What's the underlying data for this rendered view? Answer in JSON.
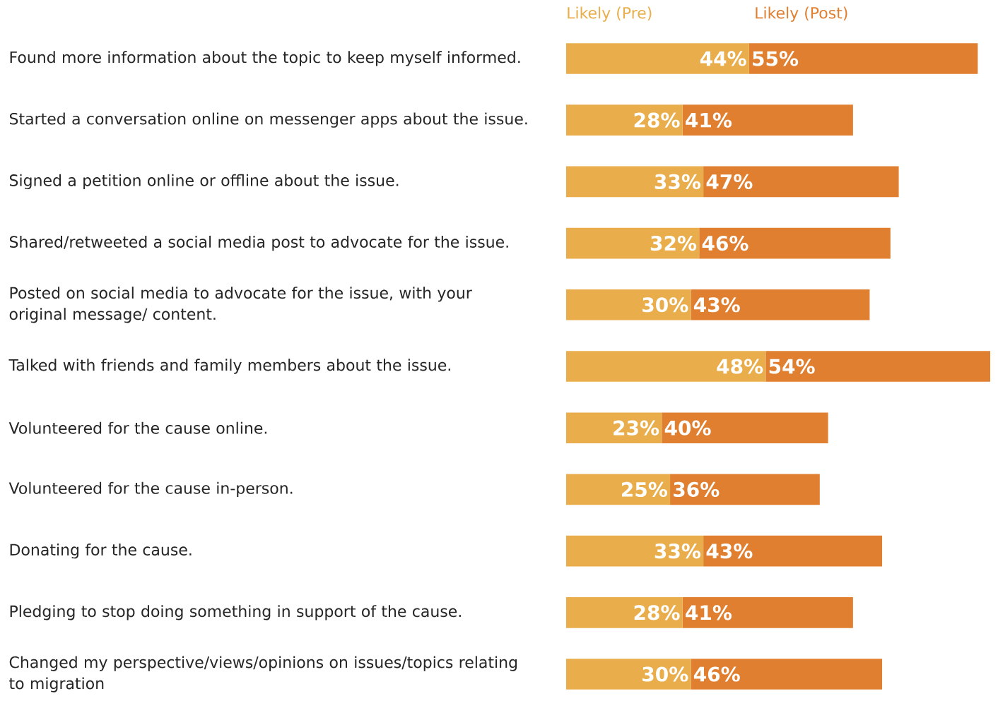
{
  "chart_data": {
    "type": "bar",
    "orientation": "horizontal",
    "stacked": true,
    "legend": "top",
    "categories": [
      "Found more information about the topic to keep myself informed.",
      "Started a conversation online on messenger apps about the issue.",
      "Signed a petition online or offline about the issue.",
      "Shared/retweeted a social media post to advocate for the issue.",
      "Posted on social media to advocate for the issue, with your original message/ content.",
      "Talked with friends and family members about the issue.",
      "Volunteered for the cause online.",
      "Volunteered for the cause in-person.",
      "Donating for the cause.",
      "Pledging to stop doing something in support of the cause.",
      "Changed my perspective/views/opinions on issues/topics relating to migration"
    ],
    "series": [
      {
        "name": "Likely (Pre)",
        "color": "#e9ae4b",
        "values": [
          44,
          28,
          33,
          32,
          30,
          48,
          23,
          25,
          33,
          28,
          30
        ],
        "value_labels": [
          "44%",
          "28%",
          "33%",
          "32%",
          "30%",
          "48%",
          "23%",
          "25%",
          "33%",
          "28%",
          "30%"
        ]
      },
      {
        "name": "Likely (Post)",
        "color": "#e17f31",
        "values": [
          55,
          41,
          47,
          46,
          43,
          54,
          40,
          36,
          43,
          41,
          46
        ],
        "value_labels": [
          "55%",
          "41%",
          "47%",
          "46%",
          "43%",
          "54%",
          "40%",
          "36%",
          "43%",
          "41%",
          "46%"
        ]
      }
    ]
  }
}
